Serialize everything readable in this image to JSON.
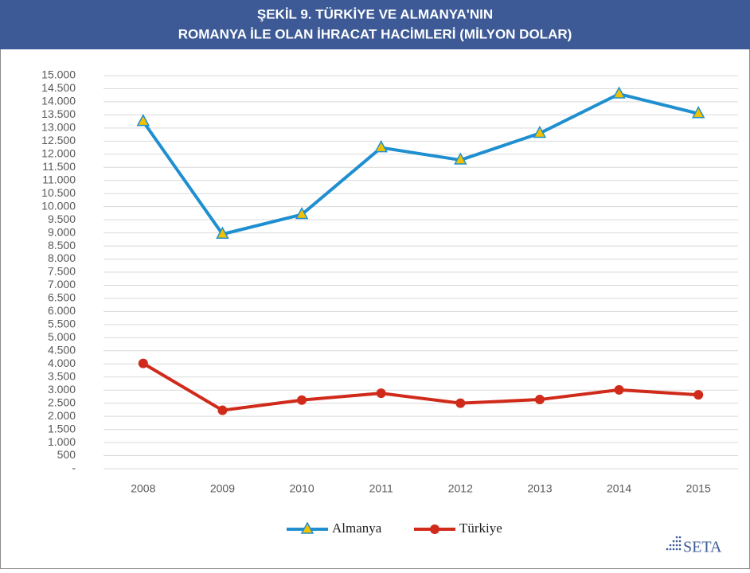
{
  "chart_data": {
    "type": "line",
    "title": [
      "ŞEKİL 9. TÜRKİYE VE ALMANYA'NIN",
      "ROMANYA İLE OLAN İHRACAT HACİMLERİ (MİLYON DOLAR)"
    ],
    "categories": [
      "2008",
      "2009",
      "2010",
      "2011",
      "2012",
      "2013",
      "2014",
      "2015"
    ],
    "series": [
      {
        "name": "Almanya",
        "color": "#1f8fd0",
        "marker": "triangle",
        "values": [
          13250,
          8950,
          9700,
          12250,
          11780,
          12800,
          14300,
          13550
        ]
      },
      {
        "name": "Türkiye",
        "color": "#d02a1a",
        "marker": "circle",
        "values": [
          4020,
          2230,
          2620,
          2880,
          2500,
          2640,
          3010,
          2820
        ]
      }
    ],
    "ylim": [
      0,
      15000
    ],
    "yticks": [
      {
        "value": 0,
        "label": "-"
      },
      500,
      {
        "value": 1000,
        "label": "1.000"
      },
      {
        "value": 1500,
        "label": "1.500"
      },
      {
        "value": 2000,
        "label": "2.000"
      },
      {
        "value": 2500,
        "label": "2.500"
      },
      {
        "value": 3000,
        "label": "3.000"
      },
      {
        "value": 3500,
        "label": "3.500"
      },
      {
        "value": 4000,
        "label": "4.000"
      },
      {
        "value": 4500,
        "label": "4.500"
      },
      {
        "value": 5000,
        "label": "5.000"
      },
      {
        "value": 5500,
        "label": "5.500"
      },
      {
        "value": 6000,
        "label": "6.000"
      },
      {
        "value": 6500,
        "label": "6.500"
      },
      {
        "value": 7000,
        "label": "7.000"
      },
      {
        "value": 7500,
        "label": "7.500"
      },
      {
        "value": 8000,
        "label": "8.000"
      },
      {
        "value": 8500,
        "label": "8.500"
      },
      {
        "value": 9000,
        "label": "9.000"
      },
      {
        "value": 9500,
        "label": "9.500"
      },
      {
        "value": 10000,
        "label": "10.000"
      },
      {
        "value": 10500,
        "label": "10.500"
      },
      {
        "value": 11000,
        "label": "11.000"
      },
      {
        "value": 11500,
        "label": "11.500"
      },
      {
        "value": 12000,
        "label": "12.000"
      },
      {
        "value": 12500,
        "label": "12.500"
      },
      {
        "value": 13000,
        "label": "13.000"
      },
      {
        "value": 13500,
        "label": "13.500"
      },
      {
        "value": 14000,
        "label": "14.000"
      },
      {
        "value": 14500,
        "label": "14.500"
      },
      {
        "value": 15000,
        "label": "15.000"
      }
    ],
    "grid": true,
    "legend": "bottom",
    "logo": "SETA"
  }
}
